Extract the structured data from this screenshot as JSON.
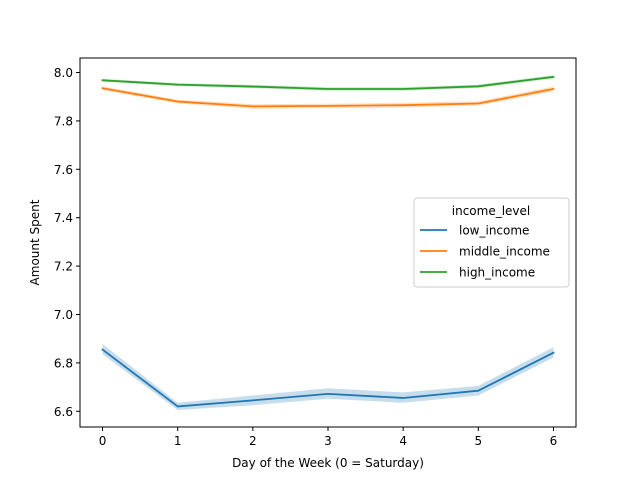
{
  "chart_data": {
    "type": "line",
    "title": "",
    "xlabel": "Day of the Week (0 = Saturday)",
    "ylabel": "Amount Spent",
    "x": [
      0,
      1,
      2,
      3,
      4,
      5,
      6
    ],
    "xlim": [
      -0.3,
      6.3
    ],
    "ylim": [
      6.535,
      8.06
    ],
    "xticks": [
      0,
      1,
      2,
      3,
      4,
      5,
      6
    ],
    "yticks": [
      6.6,
      6.8,
      7.0,
      7.2,
      7.4,
      7.6,
      7.8,
      8.0
    ],
    "ytick_labels": [
      "6.6",
      "6.8",
      "7.0",
      "7.2",
      "7.4",
      "7.6",
      "7.8",
      "8.0"
    ],
    "grid": false,
    "legend": {
      "title": "income_level",
      "placement": "center-right"
    },
    "series": [
      {
        "name": "low_income",
        "color": "#1f77b4",
        "values": [
          6.855,
          6.62,
          6.645,
          6.672,
          6.655,
          6.685,
          6.842
        ],
        "ci_low": [
          6.835,
          6.605,
          6.625,
          6.652,
          6.635,
          6.665,
          6.822
        ],
        "ci_high": [
          6.878,
          6.635,
          6.665,
          6.695,
          6.678,
          6.705,
          6.865
        ]
      },
      {
        "name": "middle_income",
        "color": "#ff7f0e",
        "values": [
          7.935,
          7.88,
          7.86,
          7.862,
          7.865,
          7.872,
          7.932
        ],
        "ci_low": [
          7.927,
          7.872,
          7.851,
          7.853,
          7.855,
          7.863,
          7.922
        ],
        "ci_high": [
          7.943,
          7.888,
          7.869,
          7.871,
          7.875,
          7.881,
          7.942
        ]
      },
      {
        "name": "high_income",
        "color": "#2ca02c",
        "values": [
          7.968,
          7.95,
          7.942,
          7.932,
          7.932,
          7.943,
          7.982
        ],
        "ci_low": [
          7.962,
          7.944,
          7.935,
          7.925,
          7.925,
          7.936,
          7.975
        ],
        "ci_high": [
          7.974,
          7.956,
          7.949,
          7.939,
          7.939,
          7.95,
          7.989
        ]
      }
    ]
  }
}
